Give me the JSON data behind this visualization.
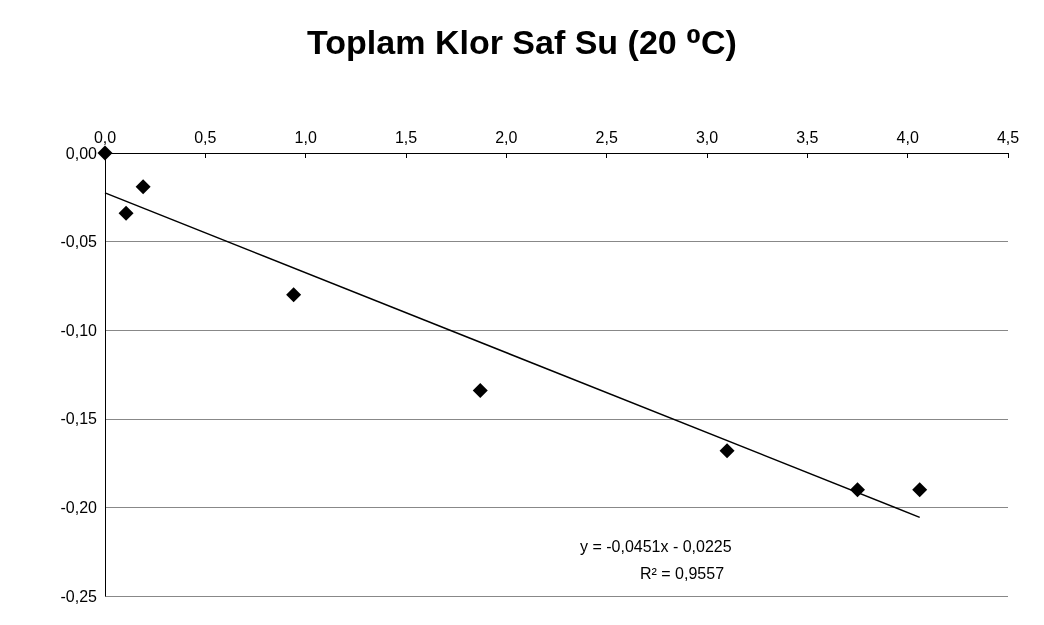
{
  "chart_data": {
    "type": "scatter",
    "title": "Toplam Klor Saf Su (20 ⁰C)",
    "x": [
      0,
      0.105,
      0.19,
      0.94,
      1.87,
      3.1,
      3.75,
      4.06
    ],
    "series": [
      {
        "color": "#000000",
        "marker": "diamond",
        "values": [
          0,
          -0.034,
          -0.019,
          -0.08,
          -0.134,
          -0.168,
          -0.19,
          -0.19
        ]
      },
      {
        "type": "line",
        "color": "#000000",
        "marker": "none",
        "x": [
          0,
          4.06
        ],
        "values": [
          -0.0225,
          -0.2056
        ]
      }
    ],
    "xlim": [
      0,
      4.5
    ],
    "xticks": [
      {
        "value": 0,
        "label": "0,0"
      },
      {
        "value": 0.5,
        "label": "0,5"
      },
      {
        "value": 1,
        "label": "1,0"
      },
      {
        "value": 1.5,
        "label": "1,5"
      },
      {
        "value": 2,
        "label": "2,0"
      },
      {
        "value": 2.5,
        "label": "2,5"
      },
      {
        "value": 3,
        "label": "3,0"
      },
      {
        "value": 3.5,
        "label": "3,5"
      },
      {
        "value": 4,
        "label": "4,0"
      },
      {
        "value": 4.5,
        "label": "4,5"
      }
    ],
    "ylim": [
      -0.25,
      0
    ],
    "yticks": [
      {
        "value": -0.25,
        "label": "-0,25"
      },
      {
        "value": -0.2,
        "label": "-0,20"
      },
      {
        "value": -0.15,
        "label": "-0,15"
      },
      {
        "value": -0.1,
        "label": "-0,10"
      },
      {
        "value": -0.05,
        "label": "-0,05"
      },
      {
        "value": 0,
        "label": "0,00"
      }
    ],
    "annotations": [
      "y = -0,0451x - 0,0225",
      "R² = 0,9557"
    ],
    "grid": "y"
  }
}
